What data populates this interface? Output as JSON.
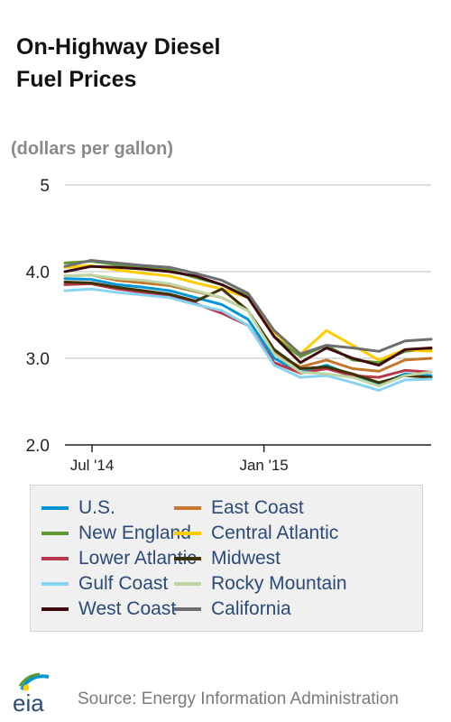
{
  "chart_data": {
    "type": "line",
    "title": "On-Highway Diesel\nFuel Prices",
    "ylabel": "(dollars per gallon)",
    "y_ticks": [
      "5",
      "4.0",
      "3.0",
      "2.0"
    ],
    "y_tick_values": [
      5,
      4,
      3,
      2
    ],
    "ylim": [
      2.0,
      5.0
    ],
    "x_ticks": [
      "Jul '14",
      "Jan '15"
    ],
    "x_tick_values": [
      "2014-07-01",
      "2015-01-01"
    ],
    "xlim": [
      "2014-06-02",
      "2015-06-29"
    ],
    "x": [
      "2014-06-02",
      "2014-06-30",
      "2014-07-28",
      "2014-08-25",
      "2014-09-22",
      "2014-10-20",
      "2014-11-17",
      "2014-12-15",
      "2015-01-12",
      "2015-02-09",
      "2015-03-09",
      "2015-04-06",
      "2015-05-04",
      "2015-06-01",
      "2015-06-29"
    ],
    "grid": true,
    "legend_position": "bottom",
    "series": [
      {
        "name": "U.S.",
        "color": "#0096d6",
        "values": [
          3.92,
          3.91,
          3.85,
          3.82,
          3.78,
          3.7,
          3.62,
          3.45,
          3.0,
          2.84,
          2.92,
          2.8,
          2.7,
          2.82,
          2.8
        ]
      },
      {
        "name": "East Coast",
        "color": "#c4762c",
        "values": [
          3.95,
          3.96,
          3.9,
          3.87,
          3.84,
          3.77,
          3.7,
          3.55,
          3.06,
          2.9,
          2.98,
          2.88,
          2.85,
          2.98,
          3.0
        ]
      },
      {
        "name": "New England",
        "color": "#5d9732",
        "values": [
          4.1,
          4.12,
          4.08,
          4.05,
          4.02,
          3.93,
          3.85,
          3.72,
          3.25,
          3.02,
          3.15,
          2.98,
          2.95,
          3.08,
          3.11
        ]
      },
      {
        "name": "Central Atlantic",
        "color": "#ffcc00",
        "values": [
          4.05,
          4.07,
          4.02,
          3.98,
          3.95,
          3.87,
          3.8,
          3.7,
          3.3,
          3.05,
          3.32,
          3.15,
          2.98,
          3.1,
          3.08
        ]
      },
      {
        "name": "Lower Atlantic",
        "color": "#b8384a",
        "values": [
          3.85,
          3.86,
          3.8,
          3.76,
          3.72,
          3.63,
          3.52,
          3.38,
          2.95,
          2.83,
          2.88,
          2.8,
          2.78,
          2.86,
          2.84
        ]
      },
      {
        "name": "Midwest",
        "color": "#3d3200",
        "values": [
          3.88,
          3.87,
          3.82,
          3.78,
          3.74,
          3.66,
          3.8,
          3.55,
          3.1,
          2.88,
          2.9,
          2.82,
          2.72,
          2.8,
          2.78
        ]
      },
      {
        "name": "Gulf Coast",
        "color": "#89d3f2",
        "values": [
          3.78,
          3.8,
          3.76,
          3.73,
          3.7,
          3.62,
          3.55,
          3.38,
          2.92,
          2.78,
          2.8,
          2.72,
          2.63,
          2.75,
          2.76
        ]
      },
      {
        "name": "Rocky Mountain",
        "color": "#bcd5a3",
        "values": [
          3.95,
          3.96,
          3.92,
          3.9,
          3.86,
          3.78,
          3.7,
          3.55,
          3.05,
          2.84,
          2.82,
          2.78,
          2.68,
          2.8,
          2.84
        ]
      },
      {
        "name": "West Coast",
        "color": "#3d0a10",
        "values": [
          4.0,
          4.06,
          4.05,
          4.03,
          4.0,
          3.95,
          3.85,
          3.7,
          3.25,
          2.95,
          3.12,
          3.0,
          2.92,
          3.1,
          3.12
        ]
      },
      {
        "name": "California",
        "color": "#6d6e71",
        "values": [
          4.06,
          4.13,
          4.1,
          4.07,
          4.05,
          3.98,
          3.9,
          3.75,
          3.32,
          3.05,
          3.15,
          3.12,
          3.08,
          3.2,
          3.22
        ]
      }
    ]
  },
  "source": "Source: Energy Information Administration",
  "logo_text": "eia",
  "logo_icon": "eia-sun-logo-icon"
}
